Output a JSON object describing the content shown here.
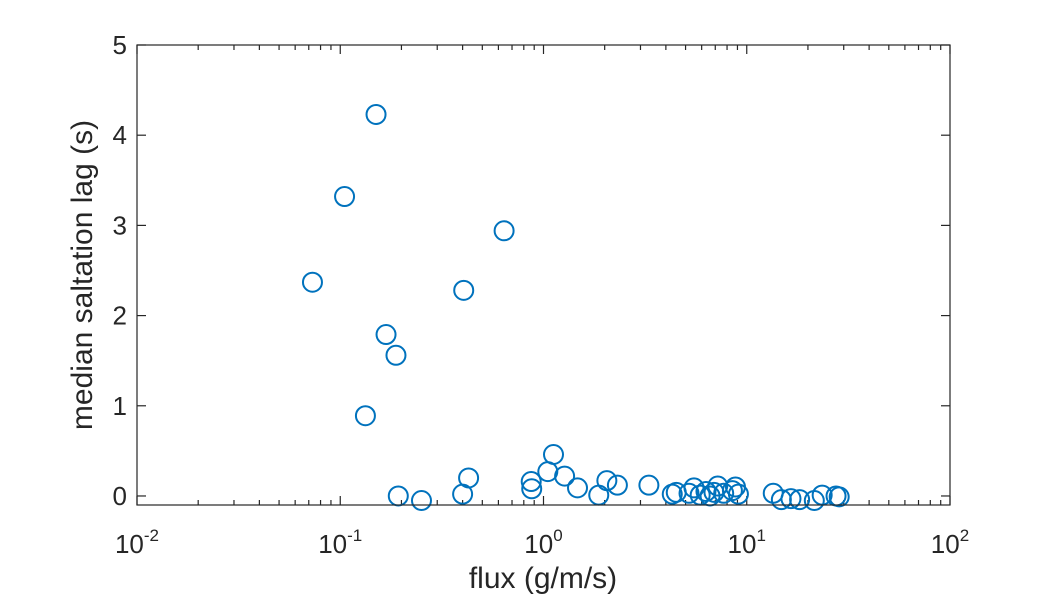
{
  "chart_data": {
    "type": "scatter",
    "xscale": "log",
    "xlim": [
      0.01,
      100
    ],
    "ylim": [
      -0.1,
      5
    ],
    "xlabel": "flux (g/m/s)",
    "ylabel": "median saltation lag (s)",
    "grid": false,
    "marker": "open-circle",
    "marker_color": "#0072BD",
    "x_ticks": [
      {
        "base": "10",
        "exp": "-2",
        "value": 0.01
      },
      {
        "base": "10",
        "exp": "-1",
        "value": 0.1
      },
      {
        "base": "10",
        "exp": "0",
        "value": 1
      },
      {
        "base": "10",
        "exp": "1",
        "value": 10
      },
      {
        "base": "10",
        "exp": "2",
        "value": 100
      }
    ],
    "y_ticks": [
      {
        "label": "0",
        "value": 0
      },
      {
        "label": "1",
        "value": 1
      },
      {
        "label": "2",
        "value": 2
      },
      {
        "label": "3",
        "value": 3
      },
      {
        "label": "4",
        "value": 4
      },
      {
        "label": "5",
        "value": 5
      }
    ],
    "points": [
      {
        "x": 0.073,
        "y": 2.37
      },
      {
        "x": 0.105,
        "y": 3.32
      },
      {
        "x": 0.133,
        "y": 0.89
      },
      {
        "x": 0.15,
        "y": 4.23
      },
      {
        "x": 0.168,
        "y": 1.79
      },
      {
        "x": 0.188,
        "y": 1.56
      },
      {
        "x": 0.193,
        "y": 0.0
      },
      {
        "x": 0.251,
        "y": -0.05
      },
      {
        "x": 0.4,
        "y": 0.02
      },
      {
        "x": 0.405,
        "y": 2.28
      },
      {
        "x": 0.428,
        "y": 0.2
      },
      {
        "x": 0.64,
        "y": 2.94
      },
      {
        "x": 0.87,
        "y": 0.16
      },
      {
        "x": 0.875,
        "y": 0.08
      },
      {
        "x": 1.05,
        "y": 0.27
      },
      {
        "x": 1.12,
        "y": 0.46
      },
      {
        "x": 1.27,
        "y": 0.22
      },
      {
        "x": 1.47,
        "y": 0.09
      },
      {
        "x": 1.87,
        "y": 0.01
      },
      {
        "x": 2.05,
        "y": 0.17
      },
      {
        "x": 2.31,
        "y": 0.12
      },
      {
        "x": 3.3,
        "y": 0.12
      },
      {
        "x": 4.3,
        "y": 0.02
      },
      {
        "x": 4.5,
        "y": 0.04
      },
      {
        "x": 5.2,
        "y": 0.03
      },
      {
        "x": 5.5,
        "y": 0.09
      },
      {
        "x": 5.9,
        "y": 0.01
      },
      {
        "x": 6.3,
        "y": 0.05
      },
      {
        "x": 6.6,
        "y": 0.0
      },
      {
        "x": 6.9,
        "y": 0.04
      },
      {
        "x": 7.2,
        "y": 0.11
      },
      {
        "x": 7.7,
        "y": 0.03
      },
      {
        "x": 8.5,
        "y": 0.06
      },
      {
        "x": 8.8,
        "y": 0.1
      },
      {
        "x": 9.1,
        "y": 0.02
      },
      {
        "x": 13.5,
        "y": 0.03
      },
      {
        "x": 14.8,
        "y": -0.04
      },
      {
        "x": 16.5,
        "y": -0.03
      },
      {
        "x": 18.2,
        "y": -0.04
      },
      {
        "x": 21.5,
        "y": -0.05
      },
      {
        "x": 23.5,
        "y": 0.01
      },
      {
        "x": 27.5,
        "y": 0.0
      },
      {
        "x": 28.5,
        "y": -0.01
      }
    ]
  }
}
